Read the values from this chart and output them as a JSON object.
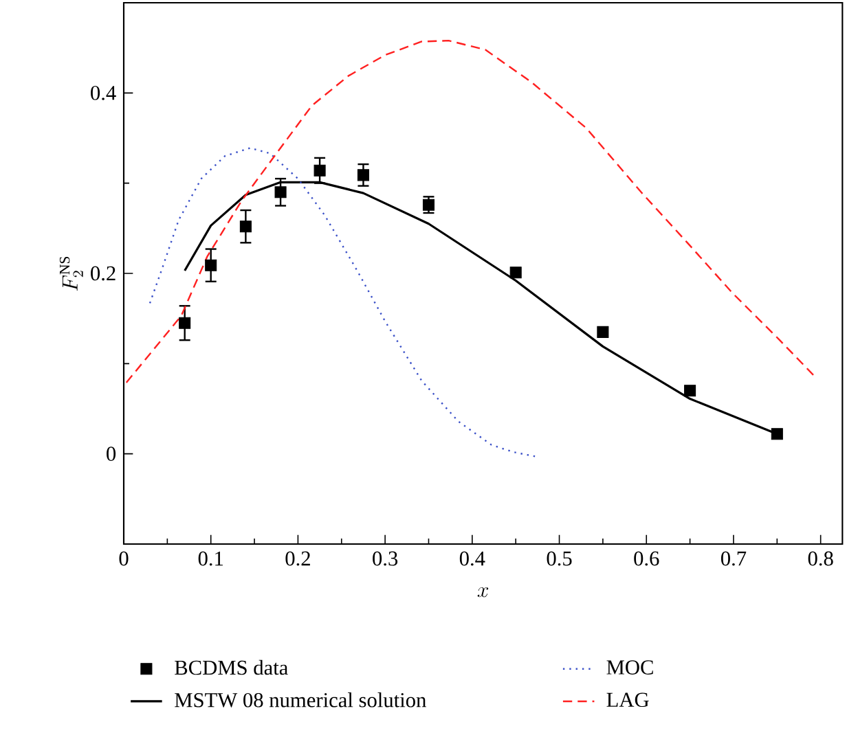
{
  "chart_data": {
    "type": "line",
    "xlabel": "x",
    "ylabel": "F_2^{\\mathrm{NS}}",
    "xlim": [
      0,
      0.825
    ],
    "ylim": [
      -0.1,
      0.5
    ],
    "xticks": [
      0,
      {
        "value": 0.05,
        "label": null
      },
      0.1,
      {
        "value": 0.15,
        "label": null
      },
      0.2,
      {
        "value": 0.25,
        "label": null
      },
      0.3,
      {
        "value": 0.35,
        "label": null
      },
      0.4,
      {
        "value": 0.45,
        "label": null
      },
      0.5,
      {
        "value": 0.55,
        "label": null
      },
      0.6,
      {
        "value": 0.65,
        "label": null
      },
      0.7,
      {
        "value": 0.75,
        "label": null
      },
      0.8
    ],
    "yticks": [
      0,
      {
        "value": 0.1,
        "label": null
      },
      0.2,
      {
        "value": 0.3,
        "label": null
      },
      0.4
    ],
    "legend": "bottom",
    "grid": false,
    "series": [
      {
        "name": "BCDMS data",
        "type": "scatter",
        "marker": "square",
        "color": "#000000",
        "x": [
          0.07,
          0.1,
          0.14,
          0.18,
          0.225,
          0.275,
          0.35,
          0.45,
          0.55,
          0.65,
          0.75
        ],
        "values": [
          0.145,
          0.209,
          0.252,
          0.29,
          0.314,
          0.309,
          0.276,
          0.201,
          0.135,
          0.07,
          0.022
        ],
        "errors": [
          0.019,
          0.018,
          0.018,
          0.015,
          0.014,
          0.012,
          0.009,
          null,
          null,
          null,
          null
        ]
      },
      {
        "name": "MSTW 08 numerical solution",
        "line_style": "solid",
        "color": "#000000",
        "x": [
          0.07,
          0.1,
          0.14,
          0.18,
          0.225,
          0.275,
          0.35,
          0.45,
          0.55,
          0.65,
          0.75
        ],
        "values": [
          0.203,
          0.253,
          0.287,
          0.301,
          0.301,
          0.289,
          0.255,
          0.192,
          0.119,
          0.061,
          0.022
        ]
      },
      {
        "name": "MOC",
        "line_style": "dotted",
        "color": "#3a50c8",
        "x": [
          0.03,
          0.045,
          0.063,
          0.089,
          0.116,
          0.145,
          0.168,
          0.2,
          0.231,
          0.268,
          0.3,
          0.342,
          0.384,
          0.422,
          0.447,
          0.473
        ],
        "values": [
          0.167,
          0.208,
          0.259,
          0.305,
          0.33,
          0.339,
          0.333,
          0.305,
          0.264,
          0.203,
          0.147,
          0.081,
          0.036,
          0.01,
          0.002,
          -0.003
        ]
      },
      {
        "name": "LAG",
        "line_style": "dashed",
        "color": "#ff2020",
        "x": [
          0.003,
          0.066,
          0.096,
          0.135,
          0.173,
          0.216,
          0.258,
          0.3,
          0.342,
          0.373,
          0.415,
          0.468,
          0.531,
          0.594,
          0.647,
          0.699,
          0.752,
          0.793
        ],
        "values": [
          0.079,
          0.153,
          0.219,
          0.28,
          0.33,
          0.386,
          0.419,
          0.442,
          0.457,
          0.458,
          0.448,
          0.412,
          0.361,
          0.29,
          0.234,
          0.178,
          0.127,
          0.086
        ]
      }
    ]
  }
}
